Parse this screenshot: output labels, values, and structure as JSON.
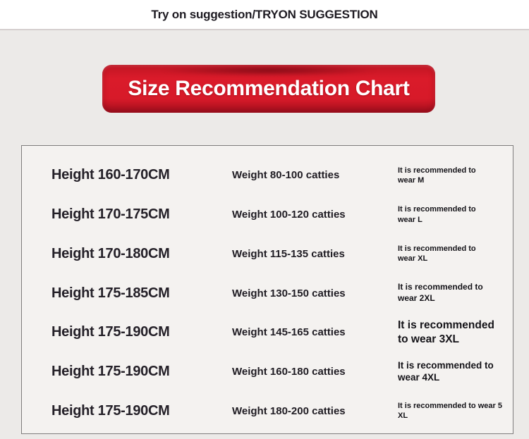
{
  "page": {
    "background": "#eceae8"
  },
  "header": {
    "title": "Try on suggestion/TRYON SUGGESTION",
    "divider_color": "#d5cfcf"
  },
  "banner": {
    "title": "Size Recommendation Chart",
    "red": "#d71a29",
    "dark_red": "#9c0f1d",
    "text_color": "#ffffff"
  },
  "size_chart": {
    "rows": [
      {
        "height": "Height 160-170CM",
        "weight": "Weight 80-100 catties",
        "recommendation": "It is recommended to\nwear M"
      },
      {
        "height": "Height 170-175CM",
        "weight": "Weight 100-120 catties",
        "recommendation": "It is recommended to\nwear L"
      },
      {
        "height": "Height 170-180CM",
        "weight": "Weight 115-135 catties",
        "recommendation": "It is recommended to\nwear XL"
      },
      {
        "height": "Height 175-185CM",
        "weight": "Weight 130-150 catties",
        "recommendation": "It is recommended to\nwear 2XL"
      },
      {
        "height": "Height 175-190CM",
        "weight": "Weight 145-165 catties",
        "recommendation": "It is recommended\nto wear 3XL"
      },
      {
        "height": "Height 175-190CM",
        "weight": "Weight 160-180 catties",
        "recommendation": "It is recommended to\nwear 4XL"
      },
      {
        "height": "Height 175-190CM",
        "weight": "Weight 180-200 catties",
        "recommendation": "It is recommended to wear 5\nXL"
      }
    ]
  }
}
